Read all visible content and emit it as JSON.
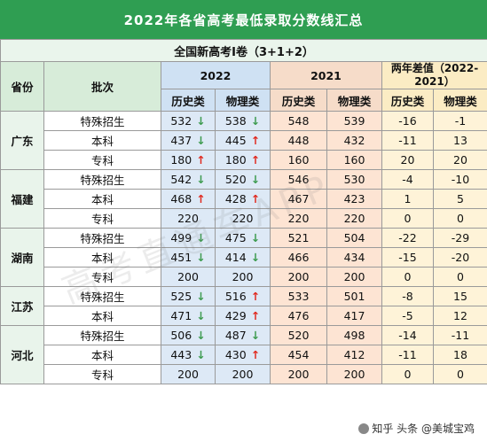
{
  "title": "2022年各省高考最低录取分数线汇总",
  "subtitle": "全国新高考Ⅰ卷（3+1+2）",
  "headers": {
    "province": "省份",
    "batch": "批次",
    "y2022": "2022",
    "y2021": "2021",
    "diff": "两年差值（2022-2021）",
    "history": "历史类",
    "physics": "物理类"
  },
  "colors": {
    "title_bg": "#2f9e52",
    "up": "#e0291e",
    "down": "#3d9b4f",
    "col2022": "#dde9f6",
    "col2021": "#fde4d3",
    "coldiff": "#fef3d8"
  },
  "arrow_icons": {
    "up": "↑",
    "down": "↓"
  },
  "provinces": [
    {
      "name": "广东",
      "rows": [
        {
          "batch": "特殊招生",
          "h22": "532",
          "h22_trend": "down",
          "p22": "538",
          "p22_trend": "down",
          "h21": "548",
          "p21": "539",
          "dh": "-16",
          "dp": "-1"
        },
        {
          "batch": "本科",
          "h22": "437",
          "h22_trend": "down",
          "p22": "445",
          "p22_trend": "up",
          "h21": "448",
          "p21": "432",
          "dh": "-11",
          "dp": "13"
        },
        {
          "batch": "专科",
          "h22": "180",
          "h22_trend": "up",
          "p22": "180",
          "p22_trend": "up",
          "h21": "160",
          "p21": "160",
          "dh": "20",
          "dp": "20"
        }
      ]
    },
    {
      "name": "福建",
      "rows": [
        {
          "batch": "特殊招生",
          "h22": "542",
          "h22_trend": "down",
          "p22": "520",
          "p22_trend": "down",
          "h21": "546",
          "p21": "530",
          "dh": "-4",
          "dp": "-10"
        },
        {
          "batch": "本科",
          "h22": "468",
          "h22_trend": "up",
          "p22": "428",
          "p22_trend": "up",
          "h21": "467",
          "p21": "423",
          "dh": "1",
          "dp": "5"
        },
        {
          "batch": "专科",
          "h22": "220",
          "h22_trend": "",
          "p22": "220",
          "p22_trend": "",
          "h21": "220",
          "p21": "220",
          "dh": "0",
          "dp": "0"
        }
      ]
    },
    {
      "name": "湖南",
      "rows": [
        {
          "batch": "特殊招生",
          "h22": "499",
          "h22_trend": "down",
          "p22": "475",
          "p22_trend": "down",
          "h21": "521",
          "p21": "504",
          "dh": "-22",
          "dp": "-29"
        },
        {
          "batch": "本科",
          "h22": "451",
          "h22_trend": "down",
          "p22": "414",
          "p22_trend": "down",
          "h21": "466",
          "p21": "434",
          "dh": "-15",
          "dp": "-20"
        },
        {
          "batch": "专科",
          "h22": "200",
          "h22_trend": "",
          "p22": "200",
          "p22_trend": "",
          "h21": "200",
          "p21": "200",
          "dh": "0",
          "dp": "0"
        }
      ]
    },
    {
      "name": "江苏",
      "rows": [
        {
          "batch": "特殊招生",
          "h22": "525",
          "h22_trend": "down",
          "p22": "516",
          "p22_trend": "up",
          "h21": "533",
          "p21": "501",
          "dh": "-8",
          "dp": "15"
        },
        {
          "batch": "本科",
          "h22": "471",
          "h22_trend": "down",
          "p22": "429",
          "p22_trend": "up",
          "h21": "476",
          "p21": "417",
          "dh": "-5",
          "dp": "12"
        }
      ]
    },
    {
      "name": "河北",
      "rows": [
        {
          "batch": "特殊招生",
          "h22": "506",
          "h22_trend": "down",
          "p22": "487",
          "p22_trend": "down",
          "h21": "520",
          "p21": "498",
          "dh": "-14",
          "dp": "-11"
        },
        {
          "batch": "本科",
          "h22": "443",
          "h22_trend": "down",
          "p22": "430",
          "p22_trend": "up",
          "h21": "454",
          "p21": "412",
          "dh": "-11",
          "dp": "18"
        },
        {
          "batch": "专科",
          "h22": "200",
          "h22_trend": "",
          "p22": "200",
          "p22_trend": "",
          "h21": "200",
          "p21": "200",
          "dh": "0",
          "dp": "0"
        }
      ]
    }
  ],
  "watermark": "高考直通车APP",
  "credit": "知乎 头条 @美城宝鸡"
}
